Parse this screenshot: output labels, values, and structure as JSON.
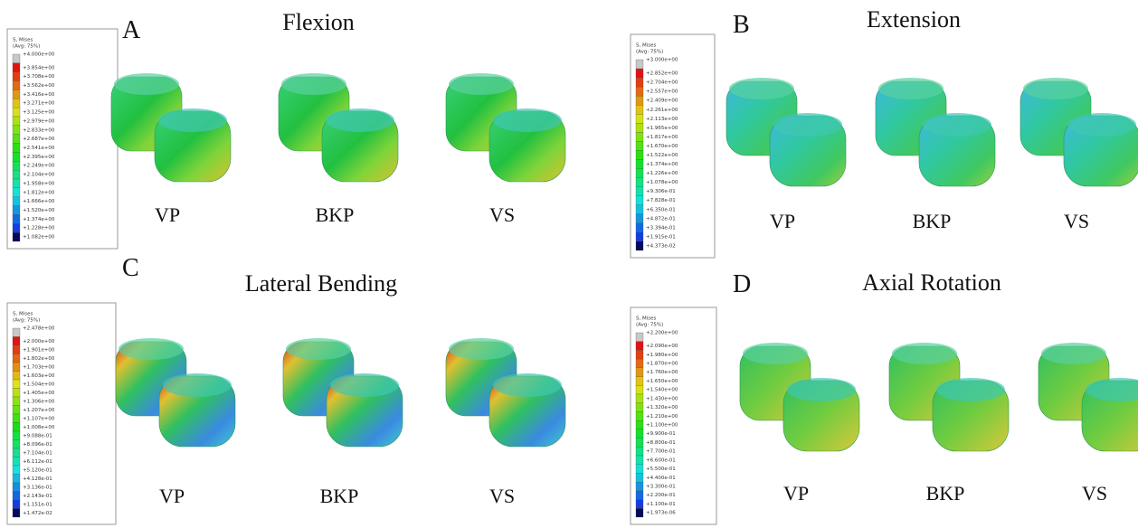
{
  "panels": [
    {
      "letter": "A",
      "title": "Flexion",
      "legend": {
        "header": "S, Mises",
        "subheader": "(Avg: 75%)",
        "labels": [
          "+4.000e+00",
          "+3.854e+00",
          "+3.708e+00",
          "+3.562e+00",
          "+3.416e+00",
          "+3.271e+00",
          "+3.125e+00",
          "+2.979e+00",
          "+2.833e+00",
          "+2.687e+00",
          "+2.541e+00",
          "+2.395e+00",
          "+2.249e+00",
          "+2.104e+00",
          "+1.958e+00",
          "+1.812e+00",
          "+1.666e+00",
          "+1.520e+00",
          "+1.374e+00",
          "+1.228e+00",
          "+1.082e+00"
        ]
      },
      "models": [
        "VP",
        "BKP",
        "VS"
      ]
    },
    {
      "letter": "B",
      "title": "Extension",
      "legend": {
        "header": "S, Mises",
        "subheader": "(Avg: 75%)",
        "labels": [
          "+3.000e+00",
          "+2.852e+00",
          "+2.704e+00",
          "+2.557e+00",
          "+2.409e+00",
          "+2.261e+00",
          "+2.113e+00",
          "+1.965e+00",
          "+1.817e+00",
          "+1.670e+00",
          "+1.522e+00",
          "+1.374e+00",
          "+1.226e+00",
          "+1.078e+00",
          "+9.306e-01",
          "+7.828e-01",
          "+6.350e-01",
          "+4.872e-01",
          "+3.394e-01",
          "+1.915e-01",
          "+4.373e-02"
        ]
      },
      "models": [
        "VP",
        "BKP",
        "VS"
      ]
    },
    {
      "letter": "C",
      "title": "Lateral Bending",
      "legend": {
        "header": "S, Mises",
        "subheader": "(Avg: 75%)",
        "labels": [
          "+2.478e+00",
          "+2.000e+00",
          "+1.901e+00",
          "+1.802e+00",
          "+1.703e+00",
          "+1.603e+00",
          "+1.504e+00",
          "+1.405e+00",
          "+1.306e+00",
          "+1.207e+00",
          "+1.107e+00",
          "+1.008e+00",
          "+9.088e-01",
          "+8.096e-01",
          "+7.104e-01",
          "+6.112e-01",
          "+5.120e-01",
          "+4.128e-01",
          "+3.136e-01",
          "+2.143e-01",
          "+1.151e-01",
          "+1.472e-02"
        ]
      },
      "models": [
        "VP",
        "BKP",
        "VS"
      ]
    },
    {
      "letter": "D",
      "title": "Axial Rotation",
      "legend": {
        "header": "S, Mises",
        "subheader": "(Avg: 75%)",
        "labels": [
          "+2.200e+00",
          "+2.090e+00",
          "+1.980e+00",
          "+1.870e+00",
          "+1.760e+00",
          "+1.650e+00",
          "+1.540e+00",
          "+1.430e+00",
          "+1.320e+00",
          "+1.210e+00",
          "+1.100e+00",
          "+9.900e-01",
          "+8.800e-01",
          "+7.700e-01",
          "+6.600e-01",
          "+5.500e-01",
          "+4.400e-01",
          "+3.300e-01",
          "+2.200e-01",
          "+1.100e-01",
          "+1.973e-06"
        ]
      },
      "models": [
        "VP",
        "BKP",
        "VS"
      ]
    }
  ]
}
